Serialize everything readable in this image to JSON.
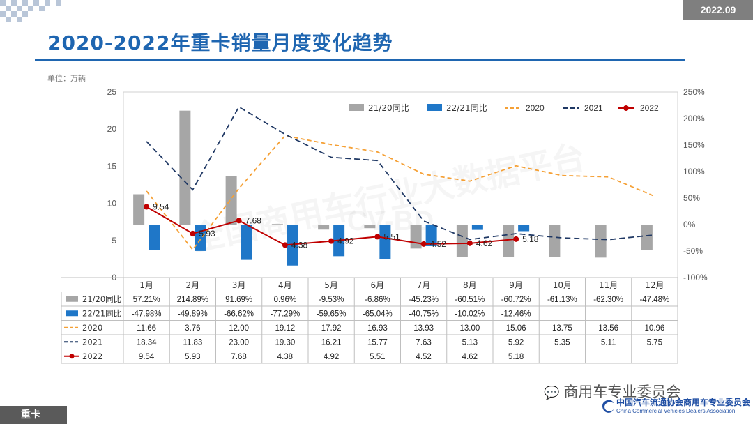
{
  "header": {
    "date_badge": "2022.09",
    "title": "2020-2022年重卡销量月度变化趋势",
    "unit": "单位：万辆"
  },
  "footer": {
    "section_tag": "重卡",
    "wechat_name": "商用车专业委员会",
    "assoc_cn": "中国汽车流通协会商用车专业委员会",
    "assoc_en": "China Commercial Vehicles Dealers Association"
  },
  "watermark": {
    "text": "全国商用车行业大数据平台",
    "logo": "CV-BD"
  },
  "colors": {
    "accent": "#1f66b1",
    "bar_2120": "#a6a6a6",
    "bar_2221": "#1f77c8",
    "line_2020": "#f5a035",
    "line_2021": "#1f3864",
    "line_2022": "#c00000"
  },
  "chart_data": {
    "type": "bar",
    "categories": [
      "1月",
      "2月",
      "3月",
      "4月",
      "5月",
      "6月",
      "7月",
      "8月",
      "9月",
      "10月",
      "11月",
      "12月"
    ],
    "y_left": {
      "min": 0,
      "max": 25,
      "ticks": [
        "0",
        "5",
        "10",
        "15",
        "20",
        "25"
      ]
    },
    "y_right": {
      "min": -100,
      "max": 250,
      "ticks": [
        "-100%",
        "-50%",
        "0%",
        "50%",
        "100%",
        "150%",
        "200%",
        "250%"
      ]
    },
    "legend": [
      "21/20同比",
      "22/21同比",
      "2020",
      "2021",
      "2022"
    ],
    "legend_position": "top",
    "series": [
      {
        "name": "21/20同比",
        "kind": "bar",
        "axis": "right",
        "values": [
          57.21,
          214.89,
          91.69,
          0.96,
          -9.53,
          -6.86,
          -45.23,
          -60.51,
          -60.72,
          -61.13,
          -62.3,
          -47.48
        ],
        "labels": [
          "57.21%",
          "214.89%",
          "91.69%",
          "0.96%",
          "-9.53%",
          "-6.86%",
          "-45.23%",
          "-60.51%",
          "-60.72%",
          "-61.13%",
          "-62.30%",
          "-47.48%"
        ]
      },
      {
        "name": "22/21同比",
        "kind": "bar",
        "axis": "right",
        "values": [
          -47.98,
          -49.89,
          -66.62,
          -77.29,
          -59.65,
          -65.04,
          -40.75,
          -10.02,
          -12.46,
          null,
          null,
          null
        ],
        "labels": [
          "-47.98%",
          "-49.89%",
          "-66.62%",
          "-77.29%",
          "-59.65%",
          "-65.04%",
          "-40.75%",
          "-10.02%",
          "-12.46%",
          "",
          "",
          ""
        ]
      },
      {
        "name": "2020",
        "kind": "line",
        "axis": "left",
        "values": [
          11.66,
          3.76,
          12.0,
          19.12,
          17.92,
          16.93,
          13.93,
          13.0,
          15.06,
          13.75,
          13.56,
          10.96
        ],
        "labels": [
          "11.66",
          "3.76",
          "12.00",
          "19.12",
          "17.92",
          "16.93",
          "13.93",
          "13.00",
          "15.06",
          "13.75",
          "13.56",
          "10.96"
        ]
      },
      {
        "name": "2021",
        "kind": "line",
        "axis": "left",
        "values": [
          18.34,
          11.83,
          23.0,
          19.3,
          16.21,
          15.77,
          7.63,
          5.13,
          5.92,
          5.35,
          5.11,
          5.75
        ],
        "labels": [
          "18.34",
          "11.83",
          "23.00",
          "19.30",
          "16.21",
          "15.77",
          "7.63",
          "5.13",
          "5.92",
          "5.35",
          "5.11",
          "5.75"
        ]
      },
      {
        "name": "2022",
        "kind": "line",
        "axis": "left",
        "values": [
          9.54,
          5.93,
          7.68,
          4.38,
          4.92,
          5.51,
          4.52,
          4.62,
          5.18,
          null,
          null,
          null
        ],
        "labels": [
          "9.54",
          "5.93",
          "7.68",
          "4.38",
          "4.92",
          "5.51",
          "4.52",
          "4.62",
          "5.18",
          "",
          "",
          ""
        ]
      }
    ]
  }
}
